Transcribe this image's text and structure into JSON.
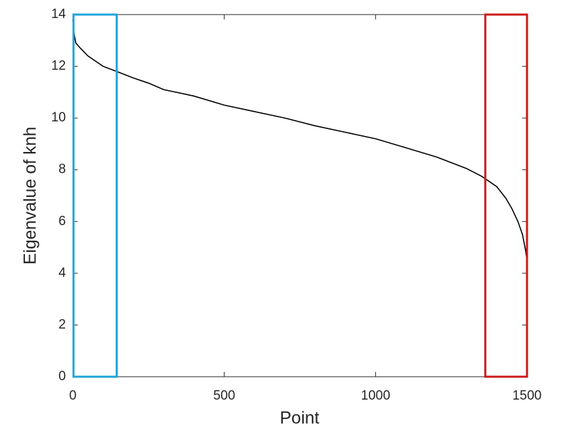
{
  "chart_data": {
    "type": "line",
    "x_label": "Point",
    "y_label": "Eigenvalue of knh",
    "xlim": [
      0,
      1500
    ],
    "ylim": [
      0,
      14
    ],
    "xticks": [
      0,
      500,
      1000,
      1500
    ],
    "yticks": [
      0,
      2,
      4,
      6,
      8,
      10,
      12,
      14
    ],
    "series": [
      {
        "color": "#000000",
        "x": [
          0,
          5,
          10,
          25,
          50,
          100,
          145,
          200,
          250,
          300,
          400,
          500,
          600,
          700,
          800,
          900,
          1000,
          1100,
          1200,
          1300,
          1350,
          1400,
          1430,
          1450,
          1470,
          1485,
          1495,
          1500
        ],
        "values": [
          13.8,
          13.2,
          12.9,
          12.7,
          12.4,
          12.0,
          11.8,
          11.55,
          11.35,
          11.1,
          10.85,
          10.5,
          10.25,
          10.0,
          9.7,
          9.45,
          9.2,
          8.85,
          8.5,
          8.05,
          7.75,
          7.35,
          6.9,
          6.5,
          6.0,
          5.5,
          4.9,
          4.5
        ]
      }
    ],
    "highlights": [
      {
        "x0": 0,
        "x1": 145,
        "color": "#1fa3d8"
      },
      {
        "x0": 1360,
        "x1": 1500,
        "color": "#cc1a1a"
      }
    ]
  }
}
